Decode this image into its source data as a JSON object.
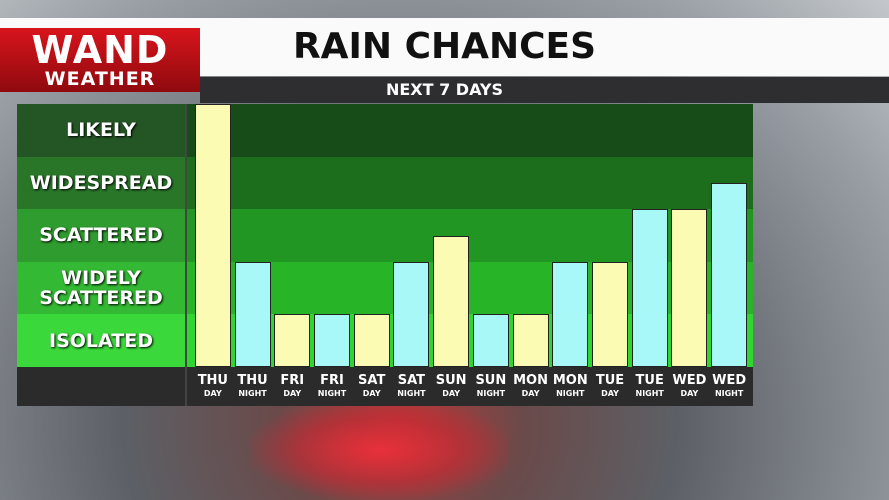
{
  "chart_data": {
    "type": "bar",
    "logo": {
      "line1": "WAND",
      "line2": "WEATHER"
    },
    "title": "RAIN CHANCES",
    "subtitle": "NEXT 7 DAYS",
    "categories": [
      "THU",
      "THU",
      "FRI",
      "FRI",
      "SAT",
      "SAT",
      "SUN",
      "SUN",
      "MON",
      "MON",
      "TUE",
      "TUE",
      "WED",
      "WED"
    ],
    "category_sublabels": [
      "DAY",
      "NIGHT",
      "DAY",
      "NIGHT",
      "DAY",
      "NIGHT",
      "DAY",
      "NIGHT",
      "DAY",
      "NIGHT",
      "DAY",
      "NIGHT",
      "DAY",
      "NIGHT"
    ],
    "values": [
      5,
      2,
      1,
      1,
      1,
      2,
      2.5,
      1,
      1,
      2,
      2,
      3,
      3,
      3.5
    ],
    "colors": [
      "#fbfbb4",
      "#a8f8f8",
      "#fbfbb4",
      "#a8f8f8",
      "#fbfbb4",
      "#a8f8f8",
      "#fbfbb4",
      "#a8f8f8",
      "#fbfbb4",
      "#a8f8f8",
      "#fbfbb4",
      "#a8f8f8",
      "#fbfbb4",
      "#a8f8f8"
    ],
    "ylim": [
      0,
      5
    ],
    "yticks": [
      {
        "value": 0.5,
        "label": "ISOLATED"
      },
      {
        "value": 1.5,
        "label": "WIDELY SCATTERED"
      },
      {
        "value": 2.5,
        "label": "SCATTERED"
      },
      {
        "value": 3.5,
        "label": "WIDESPREAD"
      },
      {
        "value": 4.5,
        "label": "LIKELY"
      }
    ],
    "band_colors": [
      "#2fd62f",
      "#27b527",
      "#229622",
      "#1c6e1c",
      "#174b17"
    ]
  }
}
